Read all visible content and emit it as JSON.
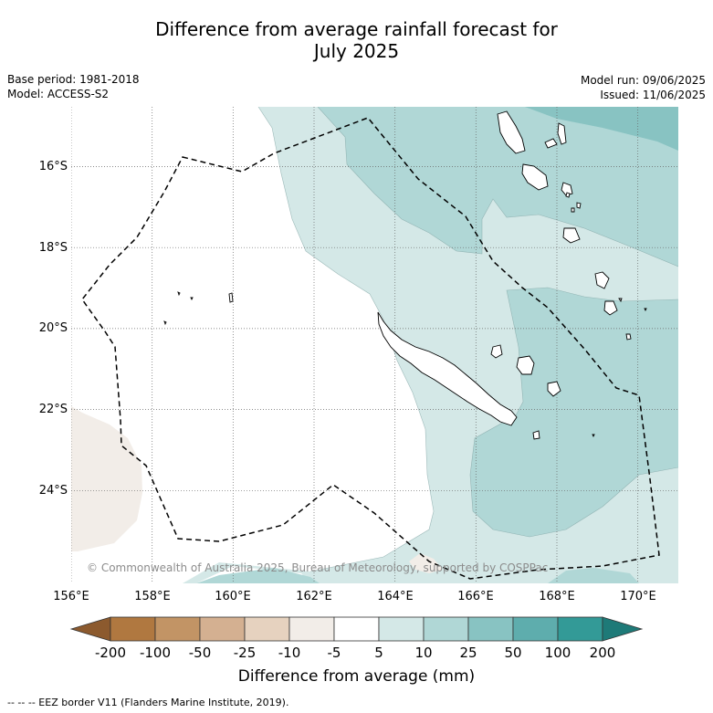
{
  "title_line1": "Difference from average rainfall forecast for",
  "title_line2": "July 2025",
  "meta_left": {
    "base_period": "Base period: 1981-2018",
    "model": "Model: ACCESS-S2"
  },
  "meta_right": {
    "model_run": "Model run: 09/06/2025",
    "issued": "Issued: 11/06/2025"
  },
  "lat_labels": [
    "16°S",
    "18°S",
    "20°S",
    "22°S",
    "24°S"
  ],
  "lon_labels": [
    "156°E",
    "158°E",
    "160°E",
    "162°E",
    "164°E",
    "166°E",
    "168°E",
    "170°E"
  ],
  "copyright": "© Commonwealth of Australia 2025, Bureau of Meteorology, supported by COSPPac",
  "colorbar": {
    "ticks": [
      "-200",
      "-100",
      "-50",
      "-25",
      "-10",
      "-5",
      "5",
      "10",
      "25",
      "50",
      "100",
      "200"
    ],
    "colors": [
      "#8c5a2e",
      "#b07840",
      "#c29465",
      "#d4b091",
      "#e6d2bf",
      "#f2ede8",
      "#ffffff",
      "#d4e8e7",
      "#b0d7d6",
      "#88c3c2",
      "#5eadad",
      "#339a97",
      "#1e7a78"
    ],
    "label": "Difference from average (mm)"
  },
  "footer": "--  --  -- EEZ border V11 (Flanders Marine Institute, 2019)."
}
